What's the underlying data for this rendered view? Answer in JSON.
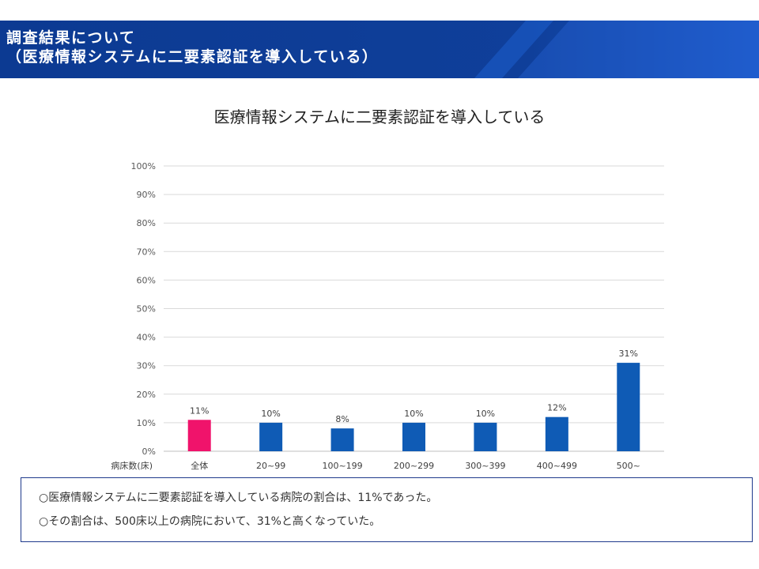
{
  "header": {
    "title_line1": "調査結果について",
    "title_line2": "（医療情報システムに二要素認証を導入している）"
  },
  "colors": {
    "header_bg": "#0f3f9a",
    "header_dark": "#0a2f7a",
    "bar_default": "#0f5bb5",
    "bar_highlight": "#f0136b",
    "notes_border": "#1f3a8c"
  },
  "chart_data": {
    "type": "bar",
    "title": "医療情報システムに二要素認証を導入している",
    "xlabel": "病床数(床)",
    "ylabel": "",
    "categories": [
      "全体",
      "20~99",
      "100~199",
      "200~299",
      "300~399",
      "400~499",
      "500~"
    ],
    "values": [
      11,
      10,
      8,
      10,
      10,
      12,
      31
    ],
    "data_labels": [
      "11%",
      "10%",
      "8%",
      "10%",
      "10%",
      "12%",
      "31%"
    ],
    "highlight": [
      "全体"
    ],
    "y_ticks": [
      "0%",
      "10%",
      "20%",
      "30%",
      "40%",
      "50%",
      "60%",
      "70%",
      "80%",
      "90%",
      "100%"
    ],
    "ylim": [
      0,
      100
    ],
    "grid": true,
    "legend": false
  },
  "notes": [
    "○医療情報システムに二要素認証を導入している病院の割合は、11%であった。",
    "○その割合は、500床以上の病院において、31%と高くなっていた。"
  ]
}
